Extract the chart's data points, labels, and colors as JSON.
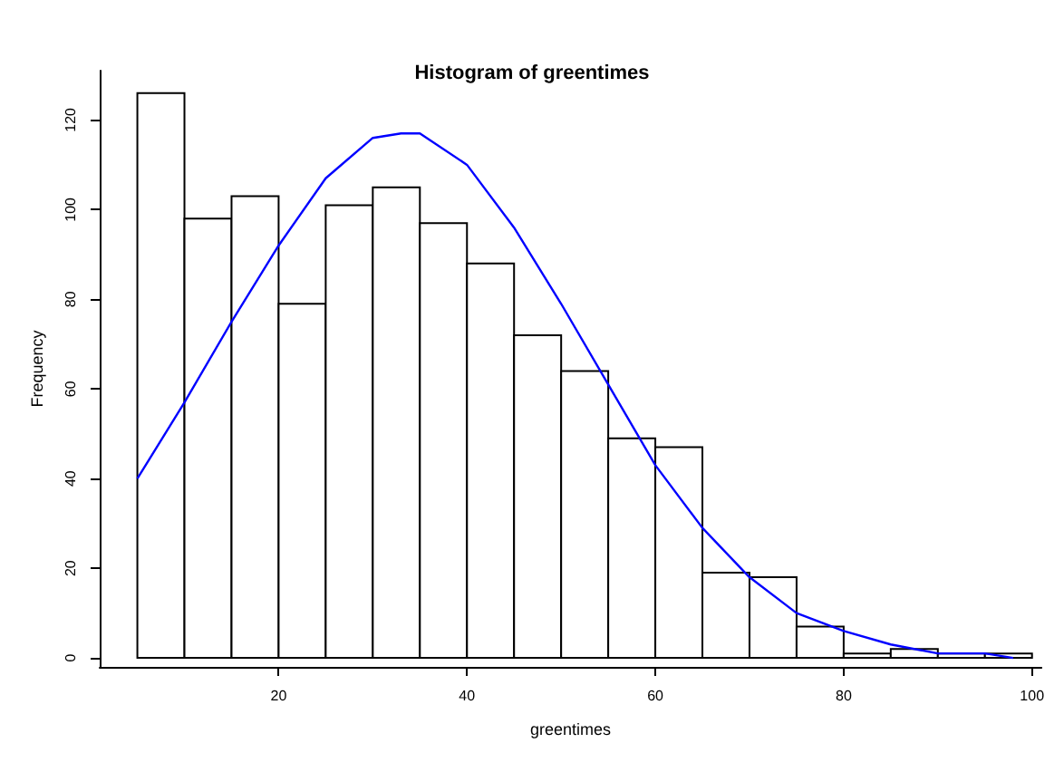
{
  "chart_data": {
    "type": "histogram",
    "title": "Histogram of greentimes",
    "xlabel": "greentimes",
    "ylabel": "Frequency",
    "xlim": [
      1,
      101
    ],
    "ylim": [
      -2,
      131
    ],
    "xticks": [
      20,
      40,
      60,
      80,
      100
    ],
    "yticks": [
      0,
      20,
      40,
      60,
      80,
      100,
      120
    ],
    "grid": false,
    "series": [
      {
        "color": "#ffffff",
        "bins": [
          5,
          10,
          15,
          20,
          25,
          30,
          35,
          40,
          45,
          50,
          55,
          60,
          65,
          70,
          75,
          80,
          85,
          90,
          95,
          100
        ],
        "values": [
          126,
          98,
          103,
          79,
          101,
          105,
          97,
          88,
          72,
          64,
          49,
          47,
          19,
          18,
          7,
          1,
          2,
          1,
          1
        ]
      },
      {
        "type": "line",
        "color": "#0000ff",
        "x": [
          5,
          10,
          15,
          20,
          25,
          30,
          33,
          35,
          40,
          45,
          50,
          55,
          60,
          65,
          70,
          75,
          80,
          85,
          90,
          95,
          98
        ],
        "values": [
          40,
          57,
          75,
          92,
          107,
          116,
          117,
          117,
          110,
          96,
          79,
          61,
          43,
          29,
          18,
          10,
          6,
          3,
          1,
          1,
          0
        ]
      }
    ]
  }
}
